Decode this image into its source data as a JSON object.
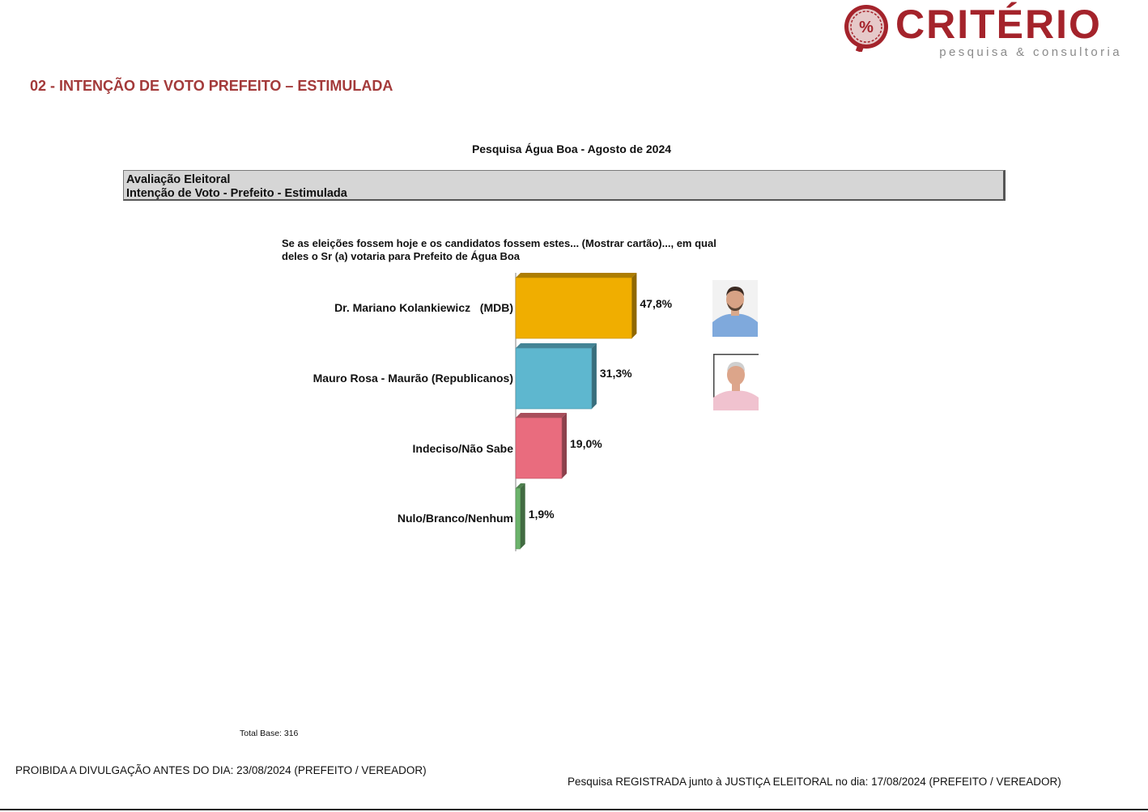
{
  "brand": {
    "name": "CRITÉRIO",
    "tagline": "pesquisa & consultoria",
    "color": "#a4232b",
    "seal_text": "%"
  },
  "section_title": "02 - INTENÇÃO DE VOTO PREFEITO – ESTIMULADA",
  "chart_title": "Pesquisa Água Boa - Agosto de 2024",
  "header": {
    "line1": "Avaliação Eleitoral",
    "line2": "Intenção de Voto - Prefeito - Estimulada"
  },
  "question": {
    "line1": "Se as eleições fossem hoje e os candidatos fossem estes... (Mostrar cartão)..., em qual",
    "line2": "deles o Sr (a) votaria para Prefeito de Água Boa"
  },
  "chart_data": {
    "type": "bar",
    "orientation": "horizontal",
    "categories": [
      "Dr. Mariano Kolankiewicz   (MDB)",
      "Mauro Rosa - Maurão (Republicanos)",
      "Indeciso/Não Sabe",
      "Nulo/Branco/Nenhum"
    ],
    "values": [
      47.8,
      31.3,
      19.0,
      1.9
    ],
    "value_labels": [
      "47,8%",
      "31,3%",
      "19,0%",
      "1,9%"
    ],
    "colors": [
      "#f0ae00",
      "#5eb7cf",
      "#e96c7e",
      "#6cb36c"
    ],
    "grid": false,
    "legend": "none"
  },
  "candidate_photos": [
    "candidate-photo-mariano",
    "candidate-photo-mauro"
  ],
  "total_base": "Total Base: 316",
  "footer": {
    "left": "PROIBIDA A DIVULGAÇÃO ANTES DO DIA: 23/08/2024 (PREFEITO / VEREADOR)",
    "right": "Pesquisa REGISTRADA junto à JUSTIÇA ELEITORAL no dia: 17/08/2024 (PREFEITO / VEREADOR)"
  }
}
